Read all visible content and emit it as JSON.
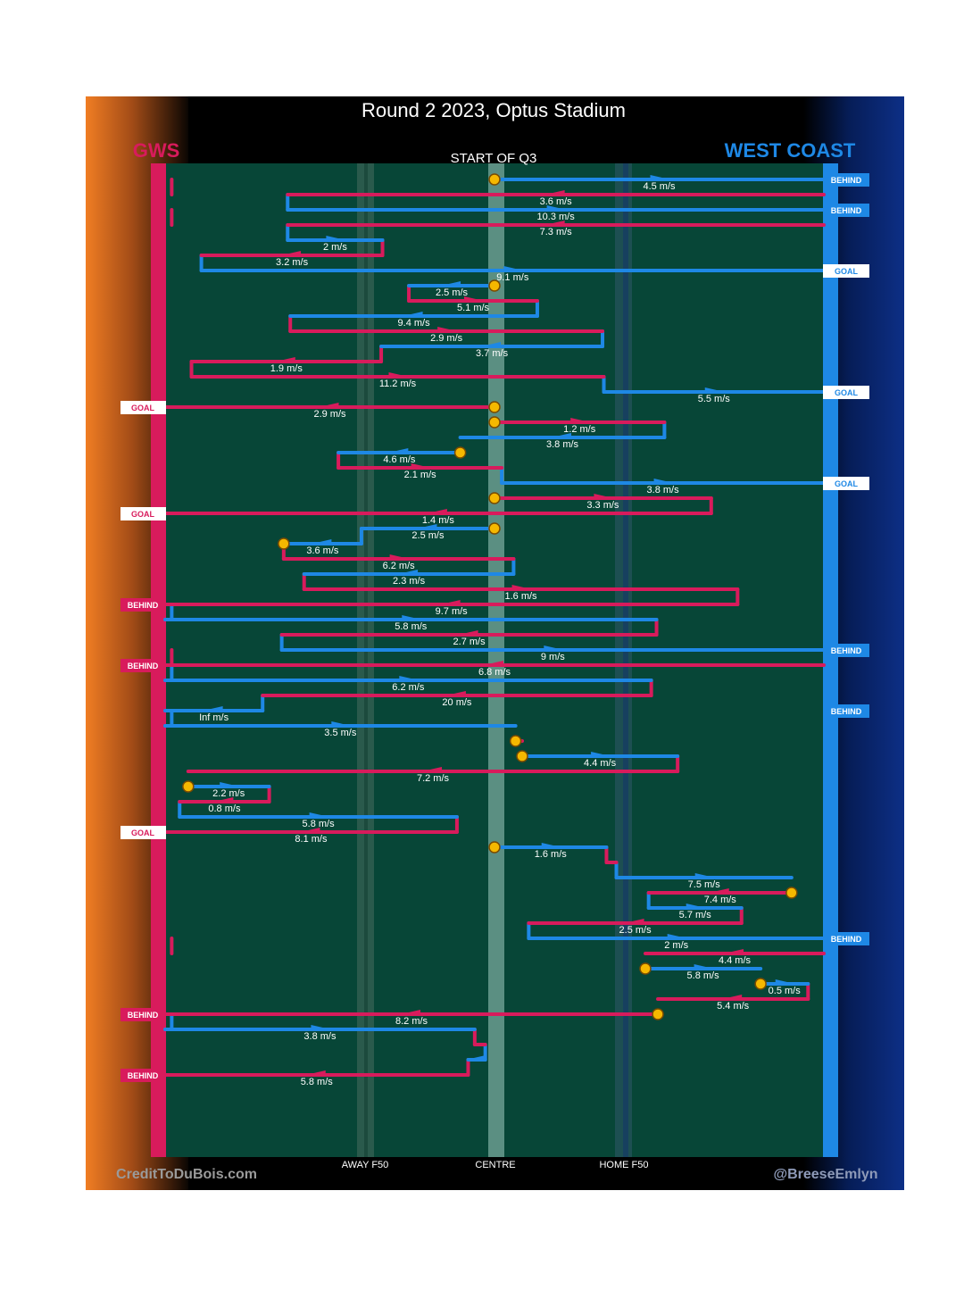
{
  "chart_data": {
    "type": "line",
    "title": "Round 2 2023, Optus Stadium",
    "subtitle": "START OF Q3",
    "teams": {
      "left": {
        "name": "GWS",
        "color": "#d81b5c"
      },
      "right": {
        "name": "WEST COAST",
        "color": "#1e88e5"
      }
    },
    "x_axis": {
      "description": "ground position, GWS end (0) to West Coast end (1)",
      "ticks": [
        {
          "label": "AWAY F50",
          "x": 0.303
        },
        {
          "label": "CENTRE",
          "x": 0.5
        },
        {
          "label": "HOME F50",
          "x": 0.697
        }
      ]
    },
    "footer": {
      "left": "CreditToDuBois.com",
      "right": "@BreeseEmlyn"
    },
    "chains": [
      {
        "team": "wce",
        "speed": "4.5 m/s",
        "x0": 0.5,
        "x1": 1.0,
        "bounce": 0.01,
        "start_marker": true,
        "outcome": "BEHIND"
      },
      {
        "team": "gws",
        "speed": "3.6 m/s",
        "x0": 1.0,
        "x1": 0.186,
        "bounce": 0.186
      },
      {
        "team": "wce",
        "speed": "10.3 m/s",
        "x0": 0.186,
        "x1": 1.0,
        "bounce": 0.01,
        "outcome": "BEHIND"
      },
      {
        "team": "gws",
        "speed": "7.3 m/s",
        "x0": 1.0,
        "x1": 0.186,
        "bounce": 0.186
      },
      {
        "team": "wce",
        "speed": "2 m/s",
        "x0": 0.186,
        "x1": 0.33,
        "bounce": 0.33
      },
      {
        "team": "gws",
        "speed": "3.2 m/s",
        "x0": 0.33,
        "x1": 0.055,
        "bounce": 0.055
      },
      {
        "team": "wce",
        "speed": "9.1 m/s",
        "x0": 0.055,
        "x1": 1.0,
        "bounce": 0.01,
        "outcome": "GOAL"
      },
      {
        "team": "wce",
        "speed": "2.5 m/s",
        "x0": 0.5,
        "x1": 0.37,
        "bounce": 0.37,
        "start_marker": true
      },
      {
        "team": "gws",
        "speed": "5.1 m/s",
        "x0": 0.37,
        "x1": 0.565,
        "bounce": 0.565
      },
      {
        "team": "wce",
        "speed": "9.4 m/s",
        "x0": 0.565,
        "x1": 0.19,
        "bounce": 0.19
      },
      {
        "team": "gws",
        "speed": "2.9 m/s",
        "x0": 0.19,
        "x1": 0.664,
        "bounce": 0.664
      },
      {
        "team": "wce",
        "speed": "3.7 m/s",
        "x0": 0.664,
        "x1": 0.328,
        "bounce": 0.328
      },
      {
        "team": "gws",
        "speed": "1.9 m/s",
        "x0": 0.328,
        "x1": 0.04,
        "bounce": 0.04
      },
      {
        "team": "gws",
        "speed": "11.2 m/s",
        "x0": 0.04,
        "x1": 0.666,
        "bounce": 0.666
      },
      {
        "team": "wce",
        "speed": "5.5 m/s",
        "x0": 0.666,
        "x1": 1.0,
        "bounce": 0.01,
        "outcome": "GOAL"
      },
      {
        "team": "gws",
        "speed": "2.9 m/s",
        "x0": 0.5,
        "x1": 0.0,
        "bounce": 0.01,
        "start_marker": true,
        "outcome": "GOAL"
      },
      {
        "team": "gws",
        "speed": "1.2 m/s",
        "x0": 0.5,
        "x1": 0.758,
        "bounce": 0.758,
        "start_marker": true
      },
      {
        "team": "wce",
        "speed": "3.8 m/s",
        "x0": 0.758,
        "x1": 0.448,
        "bounce": 0.448
      },
      {
        "team": "wce",
        "speed": "4.6 m/s",
        "x0": 0.448,
        "x1": 0.263,
        "bounce": 0.263,
        "start_marker": true
      },
      {
        "team": "gws",
        "speed": "2.1 m/s",
        "x0": 0.263,
        "x1": 0.511,
        "bounce": 0.511
      },
      {
        "team": "wce",
        "speed": "3.8 m/s",
        "x0": 0.511,
        "x1": 1.0,
        "bounce": 0.01,
        "outcome": "GOAL"
      },
      {
        "team": "gws",
        "speed": "3.3 m/s",
        "x0": 0.5,
        "x1": 0.829,
        "bounce": 0.829,
        "start_marker": true
      },
      {
        "team": "gws",
        "speed": "1.4 m/s",
        "x0": 0.829,
        "x1": 0.0,
        "bounce": 0.01,
        "outcome": "GOAL"
      },
      {
        "team": "wce",
        "speed": "2.5 m/s",
        "x0": 0.5,
        "x1": 0.298,
        "bounce": 0.298,
        "start_marker": true
      },
      {
        "team": "wce",
        "speed": "3.6 m/s",
        "x0": 0.298,
        "x1": 0.18,
        "bounce": 0.18,
        "end_marker": true
      },
      {
        "team": "gws",
        "speed": "6.2 m/s",
        "x0": 0.18,
        "x1": 0.529,
        "bounce": 0.529
      },
      {
        "team": "wce",
        "speed": "2.3 m/s",
        "x0": 0.529,
        "x1": 0.211,
        "bounce": 0.211
      },
      {
        "team": "gws",
        "speed": "1.6 m/s",
        "x0": 0.211,
        "x1": 0.869,
        "bounce": 0.869
      },
      {
        "team": "gws",
        "speed": "9.7 m/s",
        "x0": 0.869,
        "x1": 0.0,
        "bounce": 0.01,
        "outcome": "BEHIND"
      },
      {
        "team": "wce",
        "speed": "5.8 m/s",
        "x0": 0.0,
        "x1": 0.746,
        "bounce": 0.746
      },
      {
        "team": "gws",
        "speed": "2.7 m/s",
        "x0": 0.746,
        "x1": 0.177,
        "bounce": 0.177
      },
      {
        "team": "wce",
        "speed": "9 m/s",
        "x0": 0.177,
        "x1": 1.0,
        "bounce": 0.01,
        "outcome": "BEHIND"
      },
      {
        "team": "gws",
        "speed": "6.8 m/s",
        "x0": 1.0,
        "x1": 0.0,
        "bounce": 0.01,
        "outcome": "BEHIND"
      },
      {
        "team": "wce",
        "speed": "6.2 m/s",
        "x0": 0.0,
        "x1": 0.738,
        "bounce": 0.738
      },
      {
        "team": "gws",
        "speed": "20 m/s",
        "x0": 0.738,
        "x1": 0.148,
        "bounce": 0.148
      },
      {
        "team": "wce",
        "speed": "Inf m/s",
        "x0": 0.148,
        "x1": 0.0,
        "bounce": 0.01,
        "outcome": "BEHIND"
      },
      {
        "team": "wce",
        "speed": "3.5 m/s",
        "x0": 0.0,
        "x1": 0.532,
        "bounce": 0.532
      },
      {
        "team": "gws",
        "speed": "",
        "x0": 0.532,
        "x1": 0.542,
        "bounce": 0.542,
        "start_marker": true
      },
      {
        "team": "wce",
        "speed": "4.4 m/s",
        "x0": 0.542,
        "x1": 0.778,
        "bounce": 0.778,
        "start_marker": true
      },
      {
        "team": "gws",
        "speed": "7.2 m/s",
        "x0": 0.778,
        "x1": 0.035,
        "bounce": 0.035
      },
      {
        "team": "wce",
        "speed": "2.2 m/s",
        "x0": 0.035,
        "x1": 0.158,
        "bounce": 0.158,
        "start_marker": true
      },
      {
        "team": "gws",
        "speed": "0.8 m/s",
        "x0": 0.158,
        "x1": 0.022,
        "bounce": 0.022
      },
      {
        "team": "wce",
        "speed": "5.8 m/s",
        "x0": 0.022,
        "x1": 0.443,
        "bounce": 0.443
      },
      {
        "team": "gws",
        "speed": "8.1 m/s",
        "x0": 0.443,
        "x1": 0.0,
        "bounce": 0.01,
        "outcome": "GOAL"
      },
      {
        "team": "wce",
        "speed": "1.6 m/s",
        "x0": 0.5,
        "x1": 0.67,
        "bounce": 0.67,
        "start_marker": true
      },
      {
        "team": "gws",
        "speed": "",
        "x0": 0.67,
        "x1": 0.685,
        "bounce": 0.685
      },
      {
        "team": "wce",
        "speed": "7.5 m/s",
        "x0": 0.685,
        "x1": 0.951,
        "bounce": 0.951
      },
      {
        "team": "gws",
        "speed": "7.4 m/s",
        "x0": 0.951,
        "x1": 0.734,
        "bounce": 0.734,
        "start_marker": true
      },
      {
        "team": "wce",
        "speed": "5.7 m/s",
        "x0": 0.734,
        "x1": 0.875,
        "bounce": 0.875
      },
      {
        "team": "gws",
        "speed": "2.5 m/s",
        "x0": 0.875,
        "x1": 0.552,
        "bounce": 0.552
      },
      {
        "team": "wce",
        "speed": "2 m/s",
        "x0": 0.552,
        "x1": 1.0,
        "bounce": 0.01,
        "outcome": "BEHIND"
      },
      {
        "team": "gws",
        "speed": "4.4 m/s",
        "x0": 1.0,
        "x1": 0.729,
        "bounce": 0.729
      },
      {
        "team": "wce",
        "speed": "5.8 m/s",
        "x0": 0.729,
        "x1": 0.904,
        "bounce": 0.904,
        "start_marker": true
      },
      {
        "team": "wce",
        "speed": "0.5 m/s",
        "x0": 0.904,
        "x1": 0.976,
        "bounce": 0.976,
        "start_marker": true
      },
      {
        "team": "gws",
        "speed": "5.4 m/s",
        "x0": 0.976,
        "x1": 0.748,
        "bounce": 0.748
      },
      {
        "team": "gws",
        "speed": "8.2 m/s",
        "x0": 0.748,
        "x1": 0.0,
        "bounce": 0.01,
        "start_marker": true,
        "outcome": "BEHIND"
      },
      {
        "team": "wce",
        "speed": "3.8 m/s",
        "x0": 0.0,
        "x1": 0.47,
        "bounce": 0.47
      },
      {
        "team": "gws",
        "speed": "",
        "x0": 0.47,
        "x1": 0.486,
        "bounce": 0.486
      },
      {
        "team": "wce",
        "speed": "",
        "x0": 0.486,
        "x1": 0.46,
        "bounce": 0.46
      },
      {
        "team": "gws",
        "speed": "5.8 m/s",
        "x0": 0.46,
        "x1": 0.0,
        "bounce": 0.01,
        "outcome": "BEHIND"
      }
    ]
  }
}
